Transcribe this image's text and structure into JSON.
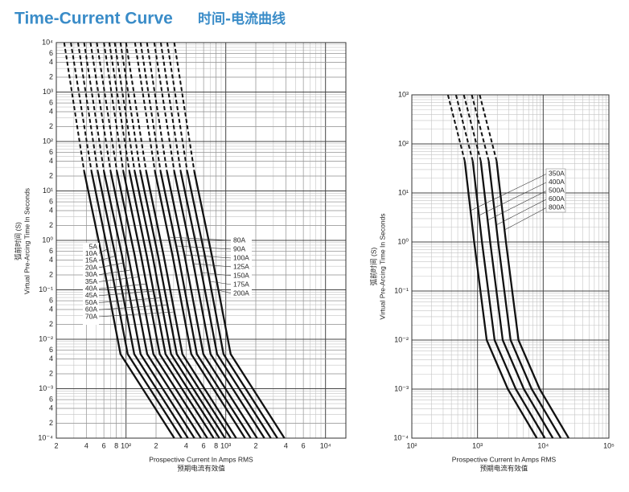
{
  "header": {
    "title": "Time-Current Curve",
    "subtitle": "时间-电流曲线"
  },
  "chart_data": [
    {
      "type": "line",
      "x_label": "Prospective Current In Amps RMS",
      "x_label_cn": "预期电流有效值",
      "y_label": "Virtual Pre-Arcing Time In Seconds",
      "y_label_cn": "弧前时间 (S)",
      "log_x": true,
      "log_y": true,
      "grid": true,
      "minor_grid": true,
      "upper_segment": "dashed",
      "xlim": [
        20,
        16000
      ],
      "ylim": [
        0.0001,
        10000
      ],
      "xticks": [
        {
          "value": 20,
          "label": "2"
        },
        {
          "value": 40,
          "label": "4"
        },
        {
          "value": 60,
          "label": "6"
        },
        {
          "value": 80,
          "label": "8"
        },
        {
          "value": 100,
          "label": "10²"
        },
        {
          "value": 200,
          "label": "2"
        },
        {
          "value": 400,
          "label": "4"
        },
        {
          "value": 600,
          "label": "6"
        },
        {
          "value": 800,
          "label": "8"
        },
        {
          "value": 1000,
          "label": "10³"
        },
        {
          "value": 2000,
          "label": "2"
        },
        {
          "value": 4000,
          "label": "4"
        },
        {
          "value": 6000,
          "label": "6"
        },
        {
          "value": 10000,
          "label": "10⁴"
        }
      ],
      "yticks": [
        {
          "value": 10000,
          "label": "10⁴"
        },
        {
          "value": 6000,
          "label": "6"
        },
        {
          "value": 4000,
          "label": "4"
        },
        {
          "value": 2000,
          "label": "2"
        },
        {
          "value": 1000,
          "label": "10³"
        },
        {
          "value": 600,
          "label": "6"
        },
        {
          "value": 400,
          "label": "4"
        },
        {
          "value": 200,
          "label": "2"
        },
        {
          "value": 100,
          "label": "10²"
        },
        {
          "value": 60,
          "label": "6"
        },
        {
          "value": 40,
          "label": "4"
        },
        {
          "value": 20,
          "label": "2"
        },
        {
          "value": 10,
          "label": "10¹"
        },
        6,
        4,
        2,
        {
          "value": 1,
          "label": "10⁰"
        },
        {
          "value": 0.6,
          "label": "6"
        },
        {
          "value": 0.4,
          "label": "4"
        },
        {
          "value": 0.2,
          "label": "2"
        },
        {
          "value": 0.1,
          "label": "10⁻¹"
        },
        {
          "value": 0.06,
          "label": "6"
        },
        {
          "value": 0.04,
          "label": "4"
        },
        {
          "value": 0.02,
          "label": "2"
        },
        {
          "value": 0.01,
          "label": "10⁻²"
        },
        {
          "value": 0.006,
          "label": "6"
        },
        {
          "value": 0.004,
          "label": "4"
        },
        {
          "value": 0.002,
          "label": "2"
        },
        {
          "value": 0.001,
          "label": "10⁻³"
        },
        {
          "value": 0.0006,
          "label": "6"
        },
        {
          "value": 0.0004,
          "label": "4"
        },
        {
          "value": 0.0002,
          "label": "2"
        },
        {
          "value": 0.0001,
          "label": "10⁻⁴"
        }
      ],
      "series": [
        {
          "name": "5A",
          "color": "#111111",
          "x": [
            24,
            38,
            57,
            88,
            305
          ],
          "values": [
            10000,
            25,
            0.5,
            0.005,
            0.0001
          ]
        },
        {
          "name": "10A",
          "color": "#111111",
          "x": [
            28,
            45,
            67,
            104,
            360
          ],
          "values": [
            10000,
            25,
            0.5,
            0.005,
            0.0001
          ]
        },
        {
          "name": "15A",
          "color": "#111111",
          "x": [
            33,
            52,
            78,
            121,
            418
          ],
          "values": [
            10000,
            25,
            0.5,
            0.005,
            0.0001
          ]
        },
        {
          "name": "20A",
          "color": "#111111",
          "x": [
            38,
            60,
            91,
            140,
            485
          ],
          "values": [
            10000,
            25,
            0.5,
            0.005,
            0.0001
          ]
        },
        {
          "name": "30A",
          "color": "#111111",
          "x": [
            44,
            70,
            105,
            163,
            564
          ],
          "values": [
            10000,
            25,
            0.5,
            0.005,
            0.0001
          ]
        },
        {
          "name": "35A",
          "color": "#111111",
          "x": [
            51,
            81,
            122,
            188,
            653
          ],
          "values": [
            10000,
            25,
            0.5,
            0.005,
            0.0001
          ]
        },
        {
          "name": "40A",
          "color": "#111111",
          "x": [
            60,
            94,
            141,
            218,
            756
          ],
          "values": [
            10000,
            25,
            0.5,
            0.005,
            0.0001
          ]
        },
        {
          "name": "45A",
          "color": "#111111",
          "x": [
            68,
            108,
            161,
            249,
            863
          ],
          "values": [
            10000,
            25,
            0.5,
            0.005,
            0.0001
          ]
        },
        {
          "name": "50A",
          "color": "#111111",
          "x": [
            77,
            122,
            184,
            283,
            982
          ],
          "values": [
            10000,
            25,
            0.5,
            0.005,
            0.0001
          ]
        },
        {
          "name": "60A",
          "color": "#111111",
          "x": [
            88,
            139,
            209,
            323,
            1120
          ],
          "values": [
            10000,
            25,
            0.5,
            0.005,
            0.0001
          ]
        },
        {
          "name": "70A",
          "color": "#111111",
          "x": [
            100,
            159,
            238,
            368,
            1270
          ],
          "values": [
            10000,
            25,
            0.5,
            0.005,
            0.0001
          ]
        },
        {
          "name": "80A",
          "color": "#111111",
          "x": [
            123,
            195,
            292,
            451,
            1560
          ],
          "values": [
            10000,
            25,
            0.5,
            0.005,
            0.0001
          ]
        },
        {
          "name": "90A",
          "color": "#111111",
          "x": [
            140,
            222,
            333,
            514,
            1780
          ],
          "values": [
            10000,
            25,
            0.5,
            0.005,
            0.0001
          ]
        },
        {
          "name": "100A",
          "color": "#111111",
          "x": [
            162,
            257,
            386,
            596,
            2060
          ],
          "values": [
            10000,
            25,
            0.5,
            0.005,
            0.0001
          ]
        },
        {
          "name": "125A",
          "color": "#111111",
          "x": [
            192,
            304,
            456,
            704,
            2440
          ],
          "values": [
            10000,
            25,
            0.5,
            0.005,
            0.0001
          ]
        },
        {
          "name": "150A",
          "color": "#111111",
          "x": [
            223,
            353,
            530,
            818,
            2830
          ],
          "values": [
            10000,
            25,
            0.5,
            0.005,
            0.0001
          ]
        },
        {
          "name": "175A",
          "color": "#111111",
          "x": [
            259,
            410,
            616,
            950,
            3290
          ],
          "values": [
            10000,
            25,
            0.5,
            0.005,
            0.0001
          ]
        },
        {
          "name": "200A",
          "color": "#111111",
          "x": [
            305,
            483,
            724,
            1120,
            3870
          ],
          "values": [
            10000,
            25,
            0.5,
            0.005,
            0.0001
          ]
        }
      ]
    },
    {
      "type": "line",
      "x_label": "Prospective Current In Amps RMS",
      "x_label_cn": "预期电流有效值",
      "y_label": "Virtual Pre-Arcing Time In Seconds",
      "y_label_cn": "弧前时间 (S)",
      "log_x": true,
      "log_y": true,
      "grid": true,
      "minor_grid": true,
      "upper_segment": "dashed",
      "xlim": [
        100,
        100000
      ],
      "ylim": [
        0.0001,
        1000
      ],
      "xticks": [
        {
          "value": 100,
          "label": "10²"
        },
        {
          "value": 1000,
          "label": "10³"
        },
        {
          "value": 10000,
          "label": "10⁴"
        },
        {
          "value": 100000,
          "label": "10⁵"
        }
      ],
      "yticks": [
        {
          "value": 1000,
          "label": "10³"
        },
        {
          "value": 100,
          "label": "10²"
        },
        {
          "value": 10,
          "label": "10¹"
        },
        {
          "value": 1,
          "label": "10⁰"
        },
        {
          "value": 0.1,
          "label": "10⁻¹"
        },
        {
          "value": 0.01,
          "label": "10⁻²"
        },
        {
          "value": 0.001,
          "label": "10⁻³"
        },
        {
          "value": 0.0001,
          "label": "10⁻⁴"
        }
      ],
      "series": [
        {
          "name": "350A",
          "color": "#111111",
          "x": [
            355,
            640,
            890,
            1380,
            2900,
            8000
          ],
          "values": [
            1000,
            45,
            1,
            0.01,
            0.001,
            0.0001
          ]
        },
        {
          "name": "400A",
          "color": "#111111",
          "x": [
            470,
            845,
            1170,
            1820,
            3830,
            10600
          ],
          "values": [
            1000,
            45,
            1,
            0.01,
            0.001,
            0.0001
          ]
        },
        {
          "name": "500A",
          "color": "#111111",
          "x": [
            620,
            1120,
            1560,
            2420,
            5080,
            14000
          ],
          "values": [
            1000,
            45,
            1,
            0.01,
            0.001,
            0.0001
          ]
        },
        {
          "name": "600A",
          "color": "#111111",
          "x": [
            820,
            1480,
            2060,
            3190,
            6700,
            18500
          ],
          "values": [
            1000,
            45,
            1,
            0.01,
            0.001,
            0.0001
          ]
        },
        {
          "name": "800A",
          "color": "#111111",
          "x": [
            1080,
            1950,
            2710,
            4210,
            8840,
            24400
          ],
          "values": [
            1000,
            45,
            1,
            0.01,
            0.001,
            0.0001
          ]
        }
      ]
    }
  ]
}
